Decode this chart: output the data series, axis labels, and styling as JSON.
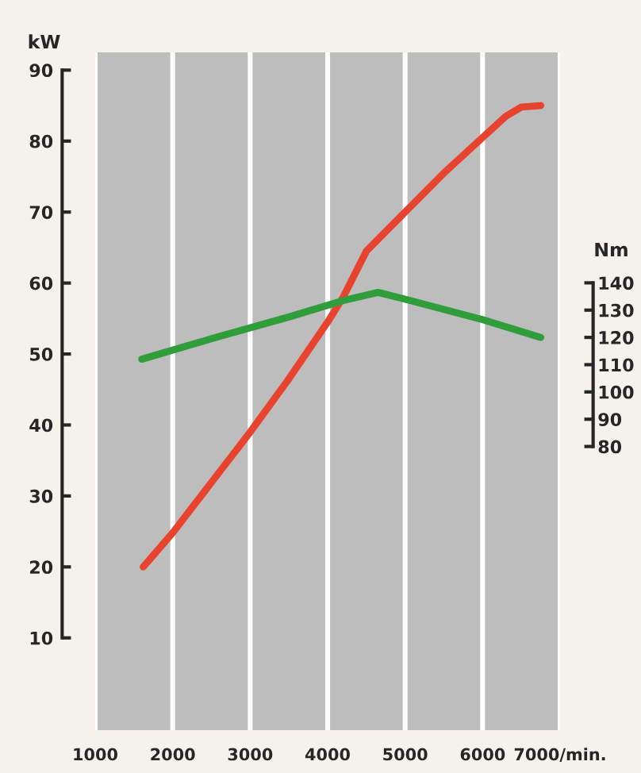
{
  "chart_data": {
    "type": "line",
    "ylabel": "kW",
    "y2label": "Nm",
    "grid": "x",
    "xlim": [
      1000,
      7000
    ],
    "xticks": [
      1000,
      2000,
      3000,
      4000,
      5000,
      6000,
      {
        "value": 7000,
        "label": "7000/min."
      }
    ],
    "ylim": [
      -3,
      92.5
    ],
    "yticks": [
      10,
      20,
      30,
      40,
      50,
      60,
      70,
      80,
      90
    ],
    "y2lim": [
      -24,
      224.5
    ],
    "y2ticks": [
      80,
      90,
      100,
      110,
      120,
      130,
      140
    ],
    "series": [
      {
        "color": "#e8432e",
        "x": [
          1620,
          2000,
          2500,
          3000,
          3500,
          4000,
          4200,
          4500,
          5000,
          5500,
          6000,
          6300,
          6500,
          6750
        ],
        "values": [
          20,
          24.8,
          31.9,
          39,
          46.5,
          54.5,
          58,
          64.5,
          70,
          75.5,
          80.5,
          83.5,
          84.8,
          85
        ]
      },
      {
        "color": "#2f9e3a",
        "axis": "y2",
        "x": [
          1600,
          2500,
          3500,
          4200,
          4650,
          5000,
          6000,
          6750
        ],
        "values": [
          112,
          119.5,
          127.5,
          133.5,
          136.5,
          134,
          126.5,
          120
        ]
      }
    ]
  }
}
